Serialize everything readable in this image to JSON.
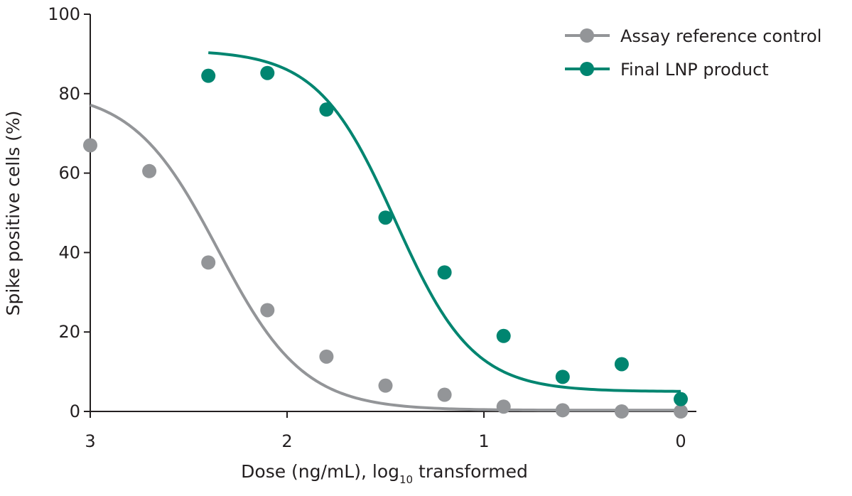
{
  "chart_data": {
    "type": "scatter",
    "title": "",
    "xlabel_main": "Dose (ng/mL), log",
    "xlabel_sub": "10",
    "xlabel_tail": " transformed",
    "ylabel": "Spike positive cells (%)",
    "x_reversed": true,
    "xlim": [
      3,
      0
    ],
    "ylim": [
      0,
      100
    ],
    "xticks": [
      3,
      2,
      1,
      0
    ],
    "yticks": [
      0,
      20,
      40,
      60,
      80,
      100
    ],
    "grid": false,
    "legend_position": "top-right",
    "series": [
      {
        "name": "Assay reference control",
        "color": "#939598",
        "points": [
          {
            "x": 3.0,
            "y": 67
          },
          {
            "x": 2.7,
            "y": 60.5
          },
          {
            "x": 2.4,
            "y": 37.5
          },
          {
            "x": 2.1,
            "y": 25.5
          },
          {
            "x": 1.8,
            "y": 13.8
          },
          {
            "x": 1.5,
            "y": 6.5
          },
          {
            "x": 1.2,
            "y": 4.2
          },
          {
            "x": 0.9,
            "y": 1.2
          },
          {
            "x": 0.6,
            "y": 0.3
          },
          {
            "x": 0.3,
            "y": 0
          },
          {
            "x": 0.0,
            "y": 0
          }
        ],
        "fit": {
          "bottom": 0.3,
          "top": 81,
          "ec50_log": 2.35,
          "hill": 2.0,
          "x_range": [
            3.0,
            0.0
          ]
        }
      },
      {
        "name": "Final LNP product",
        "color": "#008570",
        "points": [
          {
            "x": 2.4,
            "y": 84.5
          },
          {
            "x": 2.1,
            "y": 85.2
          },
          {
            "x": 1.8,
            "y": 76
          },
          {
            "x": 1.5,
            "y": 48.8
          },
          {
            "x": 1.2,
            "y": 35
          },
          {
            "x": 0.9,
            "y": 19
          },
          {
            "x": 0.6,
            "y": 8.7
          },
          {
            "x": 0.3,
            "y": 11.9
          },
          {
            "x": 0.0,
            "y": 3.1
          }
        ],
        "fit": {
          "bottom": 5.0,
          "top": 91,
          "ec50_log": 1.45,
          "hill": 2.2,
          "x_range": [
            2.4,
            0.0
          ]
        }
      }
    ]
  }
}
